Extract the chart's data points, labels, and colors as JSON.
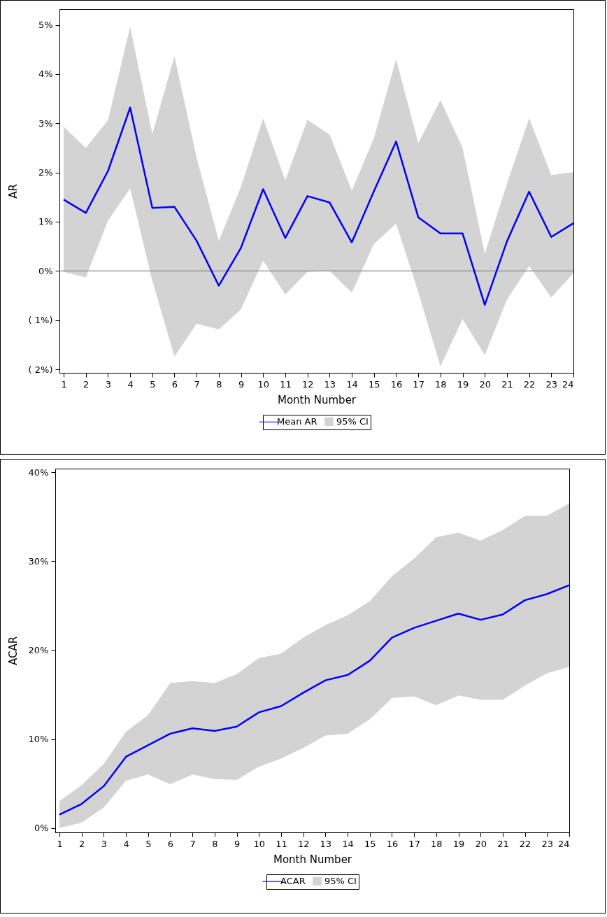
{
  "chart_data": [
    {
      "type": "line",
      "xlabel": "Month Number",
      "ylabel": "AR",
      "x": [
        1,
        2,
        3,
        4,
        5,
        6,
        7,
        8,
        9,
        10,
        11,
        12,
        13,
        14,
        15,
        16,
        17,
        18,
        19,
        20,
        21,
        22,
        23,
        24
      ],
      "xlim": [
        0.81,
        24
      ],
      "xticks": [
        1,
        2,
        3,
        4,
        5,
        6,
        7,
        8,
        9,
        10,
        11,
        12,
        13,
        14,
        15,
        16,
        17,
        18,
        19,
        20,
        21,
        22,
        23,
        24
      ],
      "ylim": [
        -2.07,
        5.32
      ],
      "yticks": [
        {
          "value": -2,
          "label": "( 2%)"
        },
        {
          "value": -1,
          "label": "( 1%)"
        },
        {
          "value": 0,
          "label": "0%"
        },
        {
          "value": 1,
          "label": "1%"
        },
        {
          "value": 2,
          "label": "2%"
        },
        {
          "value": 3,
          "label": "3%"
        },
        {
          "value": 4,
          "label": "4%"
        },
        {
          "value": 5,
          "label": "5%"
        }
      ],
      "grid": false,
      "legend": "bottom",
      "marker": "none",
      "line_style": "solid",
      "annotations": [
        "95% CI"
      ],
      "ref_lines": [
        {
          "axis": "y",
          "value": 0,
          "color": "#888888"
        }
      ],
      "series": [
        {
          "name": "Mean AR",
          "color": "#0000ff",
          "values": [
            1.45,
            1.18,
            2.03,
            3.32,
            1.28,
            1.3,
            0.61,
            -0.3,
            0.47,
            1.66,
            0.67,
            1.52,
            1.39,
            0.58,
            1.62,
            2.63,
            1.09,
            0.76,
            0.76,
            -0.69,
            0.6,
            1.61,
            0.69,
            0.97
          ],
          "lower": [
            -0.02,
            -0.13,
            1.02,
            1.68,
            -0.2,
            -1.74,
            -1.07,
            -1.19,
            -0.78,
            0.21,
            -0.48,
            -0.02,
            0.0,
            -0.44,
            0.55,
            0.96,
            -0.43,
            -1.94,
            -0.98,
            -1.71,
            -0.58,
            0.1,
            -0.54,
            -0.05
          ],
          "upper": [
            2.93,
            2.5,
            3.06,
            4.96,
            2.78,
            4.36,
            2.3,
            0.61,
            1.71,
            3.1,
            1.84,
            3.07,
            2.77,
            1.63,
            2.7,
            4.3,
            2.6,
            3.47,
            2.5,
            0.35,
            1.77,
            3.1,
            1.95,
            2.01
          ]
        }
      ]
    },
    {
      "type": "line",
      "xlabel": "Month Number",
      "ylabel": "ACAR",
      "x": [
        1,
        2,
        3,
        4,
        5,
        6,
        7,
        8,
        9,
        10,
        11,
        12,
        13,
        14,
        15,
        16,
        17,
        18,
        19,
        20,
        21,
        22,
        23,
        24
      ],
      "xlim": [
        0.81,
        24
      ],
      "xticks": [
        1,
        2,
        3,
        4,
        5,
        6,
        7,
        8,
        9,
        10,
        11,
        12,
        13,
        14,
        15,
        16,
        17,
        18,
        19,
        20,
        21,
        22,
        23,
        24
      ],
      "ylim": [
        -0.5,
        40.4
      ],
      "yticks": [
        {
          "value": 0,
          "label": "0%"
        },
        {
          "value": 10,
          "label": "10%"
        },
        {
          "value": 20,
          "label": "20%"
        },
        {
          "value": 30,
          "label": "30%"
        },
        {
          "value": 40,
          "label": "40%"
        }
      ],
      "grid": false,
      "legend": "bottom",
      "marker": "none",
      "line_style": "solid",
      "annotations": [
        "95% CI"
      ],
      "series": [
        {
          "name": "ACAR",
          "color": "#0000ff",
          "values": [
            1.5,
            2.7,
            4.7,
            8.0,
            9.3,
            10.6,
            11.2,
            10.9,
            11.4,
            13.0,
            13.7,
            15.2,
            16.6,
            17.2,
            18.8,
            21.4,
            22.5,
            23.3,
            24.1,
            23.4,
            24.0,
            25.6,
            26.3,
            27.3
          ],
          "lower": [
            0.0,
            0.6,
            2.3,
            5.3,
            6.0,
            4.9,
            6.0,
            5.5,
            5.4,
            6.9,
            7.8,
            9.0,
            10.4,
            10.6,
            12.2,
            14.6,
            14.8,
            13.8,
            14.9,
            14.4,
            14.4,
            16.0,
            17.4,
            18.1
          ],
          "upper": [
            3.0,
            4.8,
            7.2,
            10.8,
            12.7,
            16.3,
            16.5,
            16.3,
            17.3,
            19.1,
            19.6,
            21.4,
            22.8,
            23.9,
            25.5,
            28.3,
            30.3,
            32.7,
            33.2,
            32.3,
            33.5,
            35.1,
            35.1,
            36.5
          ]
        }
      ]
    }
  ]
}
